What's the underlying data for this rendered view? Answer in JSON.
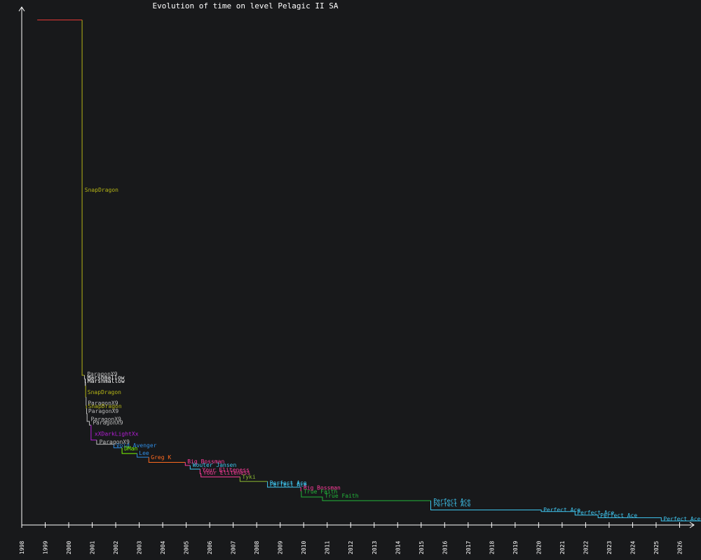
{
  "title": "Evolution of time on level Pelagic II SA",
  "colors": {
    "background": "#18191b",
    "axis": "#ffffff",
    "title": "#ffffff"
  },
  "chart_data": {
    "type": "line",
    "title": "Evolution of time on level Pelagic II SA",
    "xlabel": "",
    "ylabel": "",
    "xlim": [
      1998.0,
      2027.0
    ],
    "ylim": [
      0,
      100
    ],
    "grid": false,
    "legend": "none",
    "x_ticks": [
      "1998",
      "1999",
      "2000",
      "2001",
      "2002",
      "2003",
      "2004",
      "2005",
      "2006",
      "2007",
      "2008",
      "2009",
      "2010",
      "2011",
      "2012",
      "2013",
      "2014",
      "2015",
      "2016",
      "2017",
      "2018",
      "2019",
      "2020",
      "2021",
      "2022",
      "2023",
      "2024",
      "2025",
      "2026"
    ],
    "series": [
      {
        "name": "",
        "color": "#e53935",
        "points": [
          [
            1998.66,
            97.5
          ],
          [
            2000.57,
            97.5
          ]
        ]
      },
      {
        "name": "SnapDragon",
        "color": "#b5b516",
        "points": [
          [
            2000.57,
            97.5
          ],
          [
            2000.57,
            28.9
          ],
          [
            2000.67,
            28.9
          ]
        ]
      },
      {
        "name": "ParagonX9",
        "color": "#bbbbbb",
        "points": [
          [
            2000.67,
            28.9
          ],
          [
            2000.67,
            28.2
          ],
          [
            2000.7,
            28.2
          ]
        ]
      },
      {
        "name": "Marshmallow",
        "color": "#ffffff",
        "points": [
          [
            2000.7,
            28.2
          ],
          [
            2000.7,
            27.5
          ],
          [
            2000.71,
            27.5
          ],
          [
            2000.71,
            26.9
          ],
          [
            2000.72,
            26.9
          ]
        ]
      },
      {
        "name": "SnapDragon",
        "color": "#b5b516",
        "points": [
          [
            2000.72,
            26.9
          ],
          [
            2000.72,
            24.7
          ],
          [
            2000.74,
            24.7
          ]
        ]
      },
      {
        "name": "ParagonX9",
        "color": "#bbbbbb",
        "points": [
          [
            2000.74,
            24.7
          ],
          [
            2000.74,
            23.1
          ],
          [
            2000.75,
            23.1
          ]
        ]
      },
      {
        "name": "SnapDragon",
        "color": "#b5b516",
        "points": [
          [
            2000.75,
            23.1
          ],
          [
            2000.75,
            22.5
          ],
          [
            2000.76,
            22.5
          ]
        ]
      },
      {
        "name": "ParagonX9",
        "color": "#bbbbbb",
        "points": [
          [
            2000.76,
            22.5
          ],
          [
            2000.76,
            21.5
          ],
          [
            2000.78,
            21.5
          ],
          [
            2000.78,
            20.0
          ],
          [
            2000.88,
            20.0
          ],
          [
            2000.88,
            19.3
          ],
          [
            2000.95,
            19.3
          ]
        ]
      },
      {
        "name": "xXDarkLightXx",
        "color": "#b41ed6",
        "points": [
          [
            2000.95,
            19.3
          ],
          [
            2000.95,
            16.4
          ],
          [
            2001.19,
            16.4
          ]
        ]
      },
      {
        "name": "ParagonX9",
        "color": "#bbbbbb",
        "points": [
          [
            2001.19,
            16.4
          ],
          [
            2001.19,
            15.6
          ],
          [
            2001.92,
            15.6
          ]
        ]
      },
      {
        "name": "Void Avenger",
        "color": "#2f8de4",
        "points": [
          [
            2001.92,
            15.6
          ],
          [
            2001.92,
            14.9
          ],
          [
            2002.27,
            14.9
          ]
        ]
      },
      {
        "name": "DMan",
        "color": "#7cfc00",
        "points": [
          [
            2002.27,
            14.9
          ],
          [
            2002.27,
            13.8
          ],
          [
            2002.91,
            13.8
          ]
        ]
      },
      {
        "name": "Lee",
        "color": "#2f8de4",
        "points": [
          [
            2002.91,
            13.8
          ],
          [
            2002.91,
            13.1
          ],
          [
            2003.41,
            13.1
          ]
        ]
      },
      {
        "name": "Greg K",
        "color": "#ff6a1f",
        "points": [
          [
            2003.41,
            13.1
          ],
          [
            2003.41,
            12.1
          ],
          [
            2004.96,
            12.1
          ]
        ]
      },
      {
        "name": "Big Bossman",
        "color": "#ff3c9c",
        "points": [
          [
            2004.96,
            12.1
          ],
          [
            2004.96,
            11.5
          ],
          [
            2005.17,
            11.5
          ]
        ]
      },
      {
        "name": "Wouter Jansen",
        "color": "#3fc6f0",
        "points": [
          [
            2005.17,
            11.5
          ],
          [
            2005.17,
            10.8
          ],
          [
            2005.59,
            10.8
          ]
        ]
      },
      {
        "name": "Your Eliteness",
        "color": "#ff3c9c",
        "points": [
          [
            2005.59,
            10.8
          ],
          [
            2005.59,
            9.9
          ],
          [
            2005.63,
            9.9
          ],
          [
            2005.63,
            9.3
          ],
          [
            2007.29,
            9.3
          ]
        ]
      },
      {
        "name": "Tyki",
        "color": "#8ab531",
        "points": [
          [
            2007.29,
            9.3
          ],
          [
            2007.29,
            8.4
          ],
          [
            2008.46,
            8.4
          ]
        ]
      },
      {
        "name": "Perfect Ace",
        "color": "#3fc6f0",
        "points": [
          [
            2008.46,
            8.4
          ],
          [
            2008.46,
            7.3
          ],
          [
            2009.88,
            7.3
          ]
        ]
      },
      {
        "name": "Big Bossman",
        "color": "#ff3c9c",
        "points": [
          [
            2009.88,
            7.3
          ],
          [
            2009.88,
            6.6
          ],
          [
            2009.9,
            6.6
          ]
        ]
      },
      {
        "name": "True Faith",
        "color": "#22b53a",
        "points": [
          [
            2009.9,
            6.6
          ],
          [
            2009.9,
            5.4
          ],
          [
            2010.8,
            5.4
          ],
          [
            2010.8,
            4.7
          ],
          [
            2015.41,
            4.7
          ]
        ]
      },
      {
        "name": "Perfect Ace",
        "color": "#3fc6f0",
        "points": [
          [
            2015.41,
            4.7
          ],
          [
            2015.41,
            2.9
          ],
          [
            2020.11,
            2.9
          ],
          [
            2020.11,
            2.6
          ],
          [
            2021.55,
            2.6
          ],
          [
            2021.55,
            1.9
          ],
          [
            2022.53,
            1.9
          ],
          [
            2022.53,
            1.4
          ],
          [
            2025.22,
            1.4
          ],
          [
            2025.22,
            0.8
          ],
          [
            2027.0,
            0.8
          ]
        ]
      }
    ],
    "labels": [
      {
        "text": "SnapDragon",
        "x": 2000.68,
        "y": 64.3,
        "color": "#b5b516"
      },
      {
        "text": "ParagonX9",
        "x": 2000.78,
        "y": 28.8,
        "color": "#bbbbbb"
      },
      {
        "text": "Marshmallow",
        "x": 2000.79,
        "y": 28.1,
        "color": "#ffffff"
      },
      {
        "text": "Marshmallow",
        "x": 2000.8,
        "y": 27.4,
        "color": "#ffffff"
      },
      {
        "text": "SnapDragon",
        "x": 2000.8,
        "y": 25.3,
        "color": "#b5b516"
      },
      {
        "text": "ParagonX9",
        "x": 2000.81,
        "y": 23.2,
        "color": "#bbbbbb"
      },
      {
        "text": "SnapDragon",
        "x": 2000.82,
        "y": 22.6,
        "color": "#b5b516"
      },
      {
        "text": "ParagonX9",
        "x": 2000.83,
        "y": 21.6,
        "color": "#bbbbbb"
      },
      {
        "text": "ParagonX9",
        "x": 2000.94,
        "y": 20.1,
        "color": "#bbbbbb"
      },
      {
        "text": "ParagonX9",
        "x": 2001.02,
        "y": 19.4,
        "color": "#bbbbbb"
      },
      {
        "text": "xXDarkLightXx",
        "x": 2001.1,
        "y": 17.2,
        "color": "#b41ed6"
      },
      {
        "text": "ParagonX9",
        "x": 2001.3,
        "y": 15.7,
        "color": "#bbbbbb"
      },
      {
        "text": "Void Avenger",
        "x": 2002.02,
        "y": 15.0,
        "color": "#2f8de4"
      },
      {
        "text": "DMan",
        "x": 2002.36,
        "y": 14.4,
        "color": "#7cfc00"
      },
      {
        "text": "Lee",
        "x": 2002.99,
        "y": 13.5,
        "color": "#2f8de4"
      },
      {
        "text": "Greg K",
        "x": 2003.5,
        "y": 12.7,
        "color": "#ff6a1f"
      },
      {
        "text": "Big Bossman",
        "x": 2005.05,
        "y": 11.9,
        "color": "#ff3c9c"
      },
      {
        "text": "Wouter Jansen",
        "x": 2005.27,
        "y": 11.2,
        "color": "#3fc6f0"
      },
      {
        "text": "Your Eliteness",
        "x": 2005.68,
        "y": 10.3,
        "color": "#ff3c9c"
      },
      {
        "text": "Your Eliteness",
        "x": 2005.72,
        "y": 9.7,
        "color": "#ff3c9c"
      },
      {
        "text": "Tyki",
        "x": 2007.38,
        "y": 8.9,
        "color": "#8ab531"
      },
      {
        "text": "Perfect Ace",
        "x": 2008.55,
        "y": 7.8,
        "color": "#3fc6f0"
      },
      {
        "text": "Perfect Ace",
        "x": 2008.56,
        "y": 7.4,
        "color": "#3fc6f0"
      },
      {
        "text": "Big Bossman",
        "x": 2009.99,
        "y": 6.8,
        "color": "#ff3c9c"
      },
      {
        "text": "True Faith",
        "x": 2010.0,
        "y": 6.1,
        "color": "#22b53a"
      },
      {
        "text": "True Faith",
        "x": 2010.9,
        "y": 5.3,
        "color": "#22b53a"
      },
      {
        "text": "Perfect Ace",
        "x": 2015.52,
        "y": 4.3,
        "color": "#3fc6f0"
      },
      {
        "text": "Perfect Ace",
        "x": 2015.53,
        "y": 3.6,
        "color": "#3fc6f0"
      },
      {
        "text": "Perfect Ace",
        "x": 2020.2,
        "y": 2.6,
        "color": "#3fc6f0"
      },
      {
        "text": "Perfect Ace",
        "x": 2021.64,
        "y": 2.0,
        "color": "#3fc6f0"
      },
      {
        "text": "Perfect Ace",
        "x": 2022.62,
        "y": 1.5,
        "color": "#3fc6f0"
      },
      {
        "text": "Perfect Ace",
        "x": 2025.31,
        "y": 0.8,
        "color": "#3fc6f0"
      }
    ]
  }
}
